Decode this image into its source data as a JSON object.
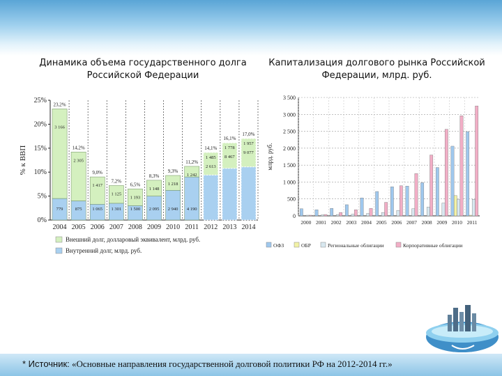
{
  "colors": {
    "external": "#d4f0bf",
    "internal": "#a9d0f0",
    "ofz": "#9fc8ee",
    "obr": "#f2f2a6",
    "regional": "#d8e8f0",
    "corporate": "#f2aec6"
  },
  "slide": {
    "left_title": "Динамика объема государственного долга Российской Федерации",
    "right_title": "Капитализация долгового рынка Российской Федерации, млрд. руб.",
    "source_prefix": "* Источник:",
    "source_text": "«Основные направления государственной долговой политики РФ на 2012-2014 гг.»"
  },
  "chart_data": [
    {
      "type": "bar",
      "stacked": true,
      "ylabel": "% к ВВП",
      "ylim": [
        0,
        25
      ],
      "yticks": [
        "0%",
        "5%",
        "10%",
        "15%",
        "20%",
        "25%"
      ],
      "categories": [
        "2004",
        "2005",
        "2006",
        "2007",
        "2008",
        "2009",
        "2010",
        "2011",
        "2012",
        "2013",
        "2014"
      ],
      "forecast_from": "2012",
      "grid": true,
      "legend_position": "bottom",
      "series": [
        {
          "name": "Внутренний долг, млрд. руб.",
          "values": [
            4.5,
            4.0,
            3.3,
            3.5,
            3.0,
            5.0,
            6.2,
            9.0,
            9.4,
            10.8,
            11.1
          ],
          "labels": [
            "779",
            "875",
            "1 065",
            "1 301",
            "1 500",
            "2 095",
            "2 940",
            "4 190",
            "",
            "",
            ""
          ]
        },
        {
          "name": "Внешний долг, долларовый эквивалент, млрд. руб.",
          "values": [
            18.7,
            10.2,
            5.7,
            3.7,
            3.5,
            3.3,
            3.1,
            2.2,
            4.7,
            5.3,
            5.9
          ],
          "labels": [
            "3 166",
            "2 305",
            "1 417",
            "1 125",
            "1 193",
            "1 148",
            "1 218",
            "1 242",
            "",
            "",
            ""
          ]
        }
      ],
      "totals": [
        "23,2%",
        "14,2%",
        "9,0%",
        "7,2%",
        "6,5%",
        "8,3%",
        "9,3%",
        "11,2%",
        "14,1%",
        "16,1%",
        "17,0%"
      ],
      "forecast_labels": [
        {
          "category": "2012",
          "labels": [
            "1 485",
            "2 613"
          ]
        },
        {
          "category": "2013",
          "labels": [
            "1 778",
            "8 467"
          ]
        },
        {
          "category": "2014",
          "labels": [
            "1 957",
            "9 077"
          ]
        }
      ]
    },
    {
      "type": "bar",
      "ylabel": "млрд. руб.",
      "ylim": [
        0,
        3500
      ],
      "yticks": [
        "0",
        "500",
        "1 000",
        "1 500",
        "2 000",
        "2 500",
        "3 000",
        "3 500"
      ],
      "categories": [
        "2000",
        "2001",
        "2002",
        "2003",
        "2004",
        "2005",
        "2006",
        "2007",
        "2008",
        "2009",
        "2010",
        "2011"
      ],
      "grid": true,
      "legend_position": "bottom",
      "series": [
        {
          "name": "ОФЗ",
          "values": [
            210,
            180,
            220,
            330,
            530,
            720,
            860,
            880,
            980,
            1430,
            2060,
            2490
          ]
        },
        {
          "name": "ОБР",
          "values": [
            0,
            0,
            0,
            0,
            0,
            0,
            0,
            0,
            0,
            0,
            600,
            20
          ]
        },
        {
          "name": "Региональные облигации",
          "values": [
            20,
            30,
            40,
            50,
            70,
            100,
            160,
            210,
            260,
            380,
            480,
            490
          ]
        },
        {
          "name": "Корпоративные облигации",
          "values": [
            20,
            40,
            100,
            180,
            220,
            400,
            890,
            1250,
            1800,
            2560,
            2960,
            3250
          ]
        }
      ]
    }
  ]
}
